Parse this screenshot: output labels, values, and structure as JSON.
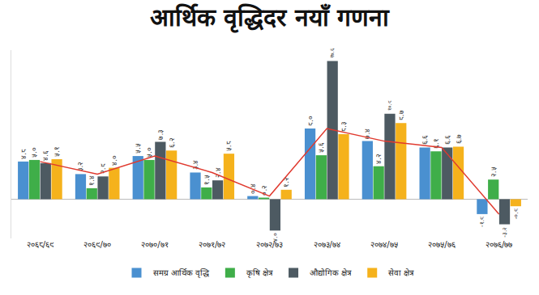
{
  "chart_data": {
    "type": "bar",
    "title": "आर्थिक वृद्धिदर नयाँ गणना",
    "categories": [
      "२०६८/६९",
      "२०६९/७०",
      "२०७०/७१",
      "२०७१/७२",
      "२०७२/७३",
      "२०७३/७४",
      "२०७४/७५",
      "२०७५/७६",
      "२०७६/७७"
    ],
    "series": [
      {
        "name": "समग्र आर्थिक वृद्धि",
        "color": "#4a90d0",
        "values": [
          4.8,
          3.2,
          5.5,
          3.4,
          0.4,
          9.0,
          7.4,
          6.6,
          -1.9
        ],
        "value_labels": [
          "४.८",
          "३.२",
          "५.५",
          "३.४",
          "०.४",
          "९.०",
          "७.४",
          "६.६",
          "-१.९"
        ]
      },
      {
        "name": "कृषि क्षेत्र",
        "color": "#3fae49",
        "values": [
          5.0,
          1.4,
          5.0,
          1.5,
          0.2,
          5.6,
          4.2,
          6.1,
          2.5
        ],
        "value_labels": [
          "५.०",
          "१.४",
          "५.०",
          "१.५",
          "०.२",
          "५.६",
          "४.२",
          "६.१",
          "२.५"
        ]
      },
      {
        "name": "औद्योगिक क्षेत्र",
        "color": "#4d5a62",
        "values": [
          4.6,
          2.9,
          7.3,
          2.4,
          -4.0,
          17.6,
          10.9,
          6.6,
          -3.2
        ],
        "value_labels": [
          "४.६",
          "२.९",
          "७.३",
          "२.४",
          "-४.०",
          "१७.६",
          "१०.९",
          "६.६",
          "-३.२"
        ]
      },
      {
        "name": "सेवा क्षेत्र",
        "color": "#f5b21c",
        "values": [
          5.1,
          4.0,
          6.2,
          5.8,
          1.2,
          8.3,
          9.7,
          6.7,
          -0.9
        ],
        "value_labels": [
          "५.१",
          "४.०",
          "६.२",
          "५.८",
          "१.२",
          "८.३",
          "९.७",
          "६.७",
          "-०.९"
        ]
      },
      {
        "type": "line",
        "color": "#e03a2f",
        "values": [
          4.8,
          3.2,
          5.5,
          3.4,
          0.4,
          9.0,
          7.4,
          6.6,
          -1.9
        ]
      }
    ],
    "ylim": [
      -5,
      19
    ],
    "data_labels": true,
    "tick_labels": "x",
    "legend": "bottom",
    "grid": false
  }
}
